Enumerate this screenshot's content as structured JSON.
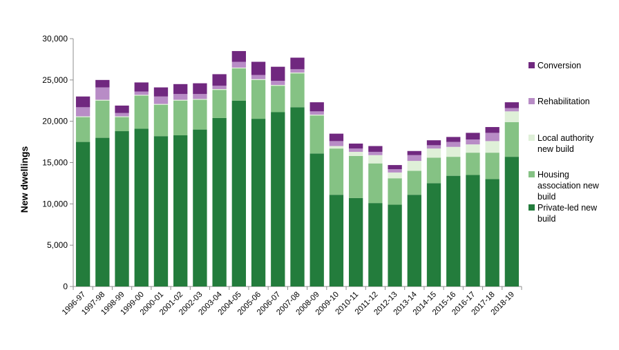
{
  "chart_data": {
    "type": "bar",
    "stacked": true,
    "title": "",
    "xlabel": "",
    "ylabel": "New dwellings",
    "ylim": [
      0,
      30000
    ],
    "yticks": [
      0,
      5000,
      10000,
      15000,
      20000,
      25000,
      30000
    ],
    "ytick_labels": [
      "0",
      "5,000",
      "10,000",
      "15,000",
      "20,000",
      "25,000",
      "30,000"
    ],
    "grid": false,
    "legend_position": "right",
    "categories": [
      "1996-97",
      "1997-98",
      "1998-99",
      "1999-00",
      "2000-01",
      "2001-02",
      "2002-03",
      "2003-04",
      "2004-05",
      "2005-06",
      "2006-07",
      "2007-08",
      "2008-09",
      "2009-10",
      "2010-11",
      "2011-12",
      "2012-13",
      "2013-14",
      "2014-15",
      "2015-16",
      "2016-17",
      "2017-18",
      "2018-19"
    ],
    "series": [
      {
        "name": "Private-led new build",
        "legend_lines": [
          "Private-led new",
          "build"
        ],
        "color": "#237c3c",
        "values": [
          17500,
          18000,
          18800,
          19100,
          18200,
          18300,
          19000,
          20400,
          22500,
          20300,
          21100,
          21700,
          16100,
          11100,
          10700,
          10100,
          9900,
          11100,
          12500,
          13400,
          13500,
          13000,
          15700
        ]
      },
      {
        "name": "Housing association new build",
        "legend_lines": [
          "Housing",
          "association new",
          "build"
        ],
        "color": "#85c284",
        "values": [
          3000,
          4500,
          1700,
          4000,
          3800,
          4200,
          3600,
          3400,
          3900,
          4700,
          3200,
          4100,
          4600,
          5600,
          5100,
          4800,
          3200,
          2900,
          3100,
          2300,
          2700,
          3200,
          4200
        ]
      },
      {
        "name": "Local authority new build",
        "legend_lines": [
          "Local authority",
          "new build"
        ],
        "color": "#dff0d8",
        "values": [
          100,
          100,
          100,
          100,
          100,
          100,
          100,
          100,
          100,
          100,
          100,
          100,
          100,
          300,
          500,
          1000,
          700,
          1200,
          1100,
          1200,
          1000,
          1400,
          1300
        ]
      },
      {
        "name": "Rehabilitation",
        "legend_lines": [
          "Rehabilitation"
        ],
        "color": "#b88cc6",
        "values": [
          1100,
          1500,
          400,
          400,
          900,
          700,
          600,
          400,
          700,
          500,
          500,
          400,
          400,
          600,
          400,
          400,
          400,
          700,
          400,
          600,
          600,
          1000,
          400
        ]
      },
      {
        "name": "Conversion",
        "legend_lines": [
          "Conversion"
        ],
        "color": "#70287f",
        "values": [
          1300,
          900,
          900,
          1100,
          1100,
          1200,
          1300,
          1400,
          1300,
          1600,
          1700,
          1400,
          1100,
          900,
          600,
          700,
          500,
          500,
          600,
          600,
          800,
          700,
          700
        ]
      }
    ]
  }
}
